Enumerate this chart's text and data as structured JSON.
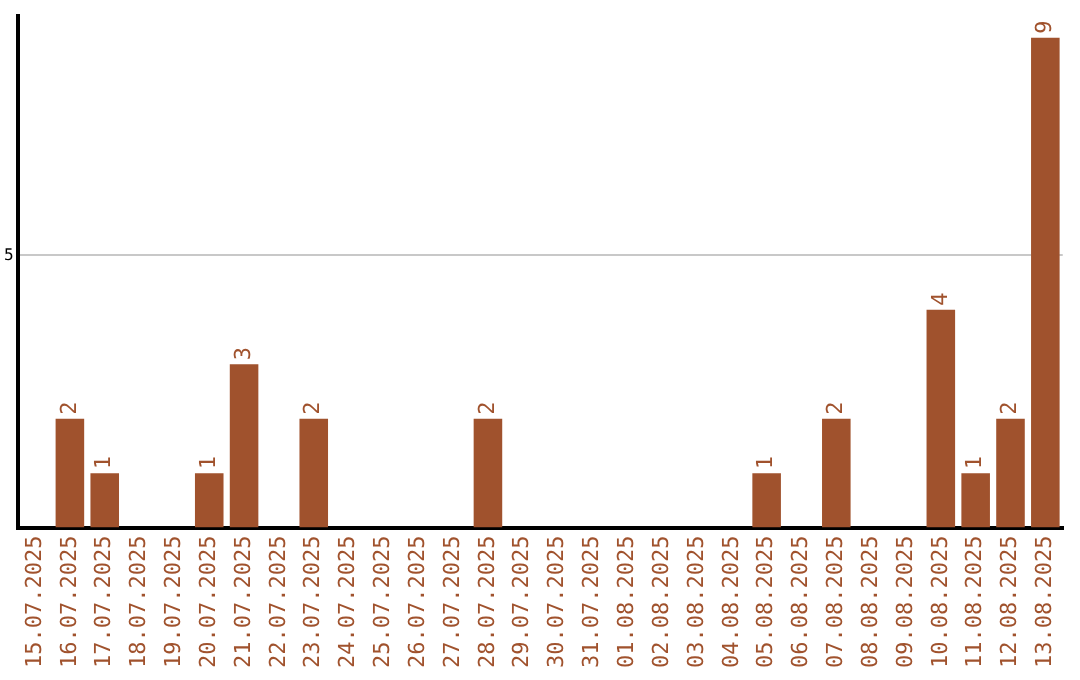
{
  "chart_data": {
    "type": "bar",
    "categories": [
      "15.07.2025",
      "16.07.2025",
      "17.07.2025",
      "18.07.2025",
      "19.07.2025",
      "20.07.2025",
      "21.07.2025",
      "22.07.2025",
      "23.07.2025",
      "24.07.2025",
      "25.07.2025",
      "26.07.2025",
      "27.07.2025",
      "28.07.2025",
      "29.07.2025",
      "30.07.2025",
      "31.07.2025",
      "01.08.2025",
      "02.08.2025",
      "03.08.2025",
      "04.08.2025",
      "05.08.2025",
      "06.08.2025",
      "07.08.2025",
      "08.08.2025",
      "09.08.2025",
      "10.08.2025",
      "11.08.2025",
      "12.08.2025",
      "13.08.2025"
    ],
    "values": [
      0,
      2,
      1,
      0,
      0,
      1,
      3,
      0,
      2,
      0,
      0,
      0,
      0,
      2,
      0,
      0,
      0,
      0,
      0,
      0,
      0,
      1,
      0,
      2,
      0,
      0,
      4,
      1,
      2,
      9
    ],
    "value_labels": [
      null,
      "2",
      "1",
      null,
      null,
      "1",
      "3",
      null,
      "2",
      null,
      null,
      null,
      null,
      "2",
      null,
      null,
      null,
      null,
      null,
      null,
      null,
      "1",
      null,
      "2",
      null,
      null,
      "4",
      "1",
      "2",
      "9"
    ],
    "color": "#a0522d",
    "ylim": [
      0,
      9.4
    ],
    "yticks": [
      5
    ],
    "grid": "y"
  }
}
